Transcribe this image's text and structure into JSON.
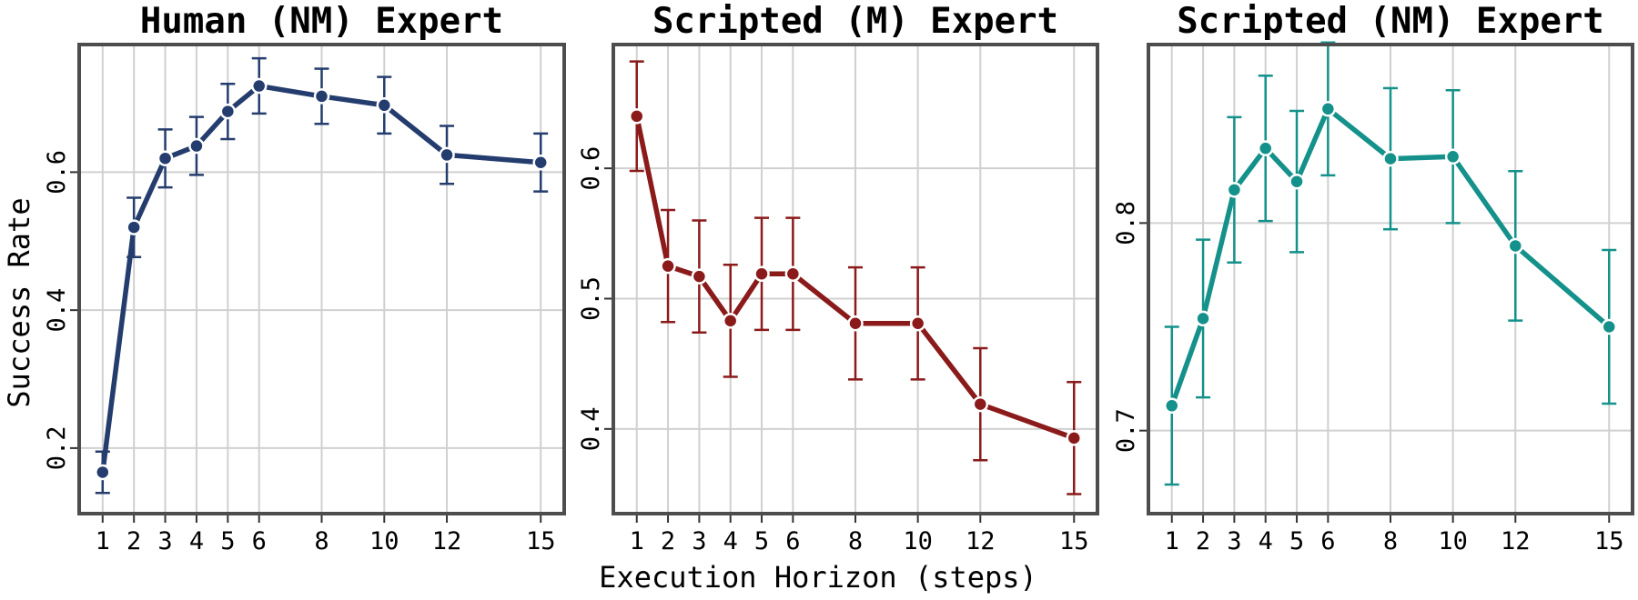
{
  "figure": {
    "ylabel": "Success Rate",
    "xlabel": "Execution Horizon (steps)"
  },
  "chart_data": [
    {
      "type": "line",
      "title": "Human (NM) Expert",
      "ylabel": "Success Rate",
      "xlabel": "",
      "color": "#243d6e",
      "x": [
        1,
        2,
        3,
        4,
        5,
        6,
        8,
        10,
        12,
        15
      ],
      "y": [
        0.165,
        0.52,
        0.62,
        0.638,
        0.688,
        0.725,
        0.71,
        0.697,
        0.625,
        0.614
      ],
      "err": [
        0.03,
        0.043,
        0.042,
        0.042,
        0.04,
        0.04,
        0.04,
        0.041,
        0.042,
        0.042
      ],
      "xticks": [
        1,
        2,
        3,
        4,
        5,
        6,
        8,
        10,
        12,
        15
      ],
      "yticks": [
        0.2,
        0.4,
        0.6
      ],
      "xlim": [
        0.25,
        15.75
      ],
      "ylim": [
        0.105,
        0.785
      ],
      "grid": true
    },
    {
      "type": "line",
      "title": "Scripted (M) Expert",
      "ylabel": "",
      "xlabel": "Execution Horizon (steps)",
      "color": "#8b1a1a",
      "x": [
        1,
        2,
        3,
        4,
        5,
        6,
        8,
        10,
        12,
        15
      ],
      "y": [
        0.64,
        0.525,
        0.517,
        0.483,
        0.519,
        0.519,
        0.481,
        0.481,
        0.419,
        0.393
      ],
      "err": [
        0.042,
        0.043,
        0.043,
        0.043,
        0.043,
        0.043,
        0.043,
        0.043,
        0.043,
        0.043
      ],
      "xticks": [
        1,
        2,
        3,
        4,
        5,
        6,
        8,
        10,
        12,
        15
      ],
      "yticks": [
        0.4,
        0.5,
        0.6
      ],
      "xlim": [
        0.25,
        15.75
      ],
      "ylim": [
        0.335,
        0.695
      ],
      "grid": true
    },
    {
      "type": "line",
      "title": "Scripted (NM) Expert",
      "ylabel": "",
      "xlabel": "",
      "color": "#14918a",
      "x": [
        1,
        2,
        3,
        4,
        5,
        6,
        8,
        10,
        12,
        15
      ],
      "y": [
        0.712,
        0.754,
        0.816,
        0.836,
        0.82,
        0.855,
        0.831,
        0.832,
        0.789,
        0.75
      ],
      "err": [
        0.038,
        0.038,
        0.035,
        0.035,
        0.034,
        0.032,
        0.034,
        0.032,
        0.036,
        0.037
      ],
      "xticks": [
        1,
        2,
        3,
        4,
        5,
        6,
        8,
        10,
        12,
        15
      ],
      "yticks": [
        0.7,
        0.8
      ],
      "xlim": [
        0.25,
        15.75
      ],
      "ylim": [
        0.66,
        0.886
      ],
      "grid": true
    }
  ]
}
